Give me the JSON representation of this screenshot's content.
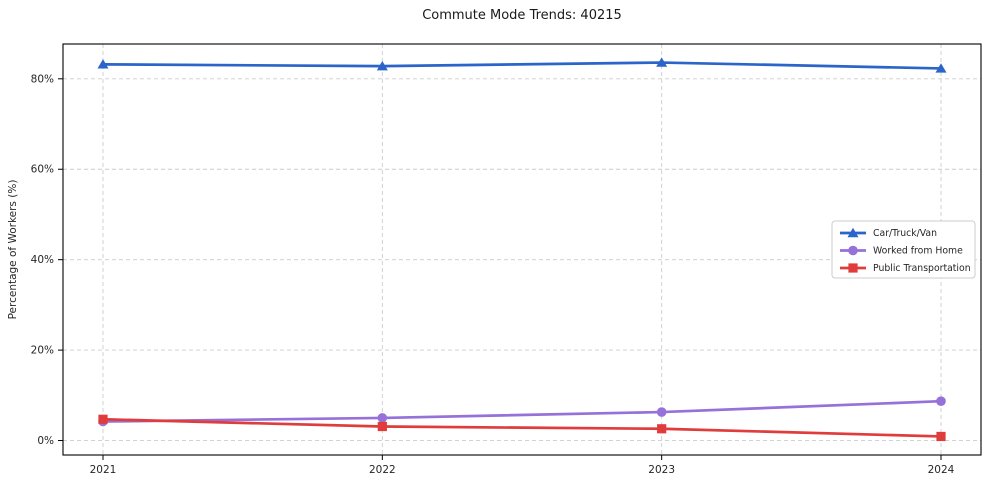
{
  "chart_data": {
    "type": "line",
    "title": "Commute Mode Trends: 40215",
    "xlabel": "",
    "ylabel": "Percentage of Workers (%)",
    "x": [
      2021,
      2022,
      2023,
      2024
    ],
    "xtick_labels": [
      "2021",
      "2022",
      "2023",
      "2024"
    ],
    "series": [
      {
        "name": "Car/Truck/Van",
        "values": [
          83.2,
          82.8,
          83.6,
          82.3
        ],
        "color": "#2b65c9",
        "marker": "triangle"
      },
      {
        "name": "Worked from Home",
        "values": [
          4.2,
          5.0,
          6.3,
          8.7
        ],
        "color": "#9671d9",
        "marker": "circle"
      },
      {
        "name": "Public Transportation",
        "values": [
          4.7,
          3.1,
          2.6,
          0.9
        ],
        "color": "#e03c3c",
        "marker": "square"
      }
    ],
    "ylim": [
      -3.2,
      87.7
    ],
    "yticks": [
      0,
      20,
      40,
      60,
      80
    ],
    "ytick_labels": [
      "0%",
      "20%",
      "40%",
      "60%",
      "80%"
    ],
    "grid": true,
    "grid_color": "#cccccc",
    "frame_color": "#000000",
    "legend_position": "right-middle"
  }
}
